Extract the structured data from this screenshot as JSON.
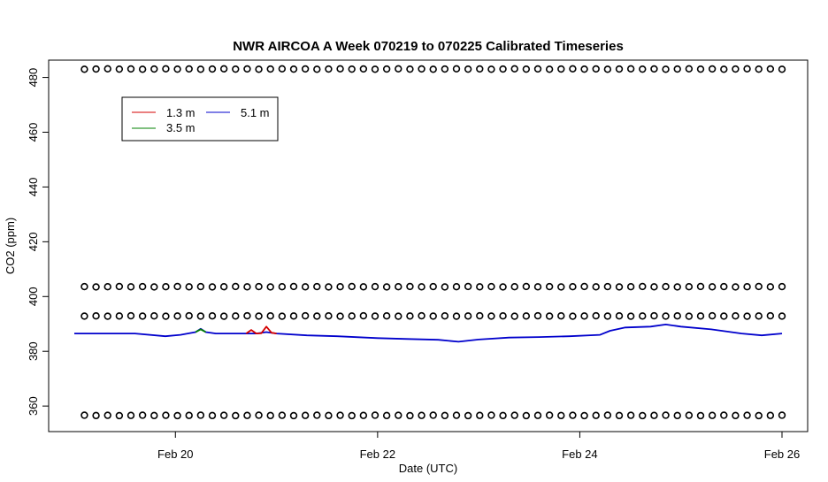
{
  "chart_data": {
    "type": "line",
    "title": "NWR AIRCOA A  Week 070219 to 070225  Calibrated Timeseries",
    "xlabel": "Date (UTC)",
    "ylabel": "CO2 (ppm)",
    "xlim": [
      19.0,
      26.0
    ],
    "ylim": [
      351.0,
      486.0
    ],
    "x_ticks": [
      {
        "value": 20,
        "label": "Feb 20"
      },
      {
        "value": 22,
        "label": "Feb 22"
      },
      {
        "value": 24,
        "label": "Feb 24"
      },
      {
        "value": 26,
        "label": "Feb 26"
      }
    ],
    "y_ticks": [
      360,
      380,
      400,
      420,
      440,
      460,
      480
    ],
    "legend": {
      "position": "top-left",
      "entries": [
        {
          "name": "1.3 m",
          "color": "#d40000"
        },
        {
          "name": "3.5 m",
          "color": "#008000"
        },
        {
          "name": "5.1 m",
          "color": "#0000cc"
        }
      ]
    },
    "series": [
      {
        "name": "5.1 m",
        "color": "#0000cc",
        "x": [
          19.0,
          19.3,
          19.6,
          19.9,
          20.05,
          20.2,
          20.25,
          20.3,
          20.4,
          20.6,
          20.8,
          20.9,
          21.0,
          21.3,
          21.6,
          22.0,
          22.3,
          22.6,
          22.8,
          23.0,
          23.3,
          23.6,
          23.9,
          24.2,
          24.3,
          24.45,
          24.7,
          24.85,
          25.0,
          25.3,
          25.6,
          25.8,
          26.0
        ],
        "y": [
          386.5,
          386.5,
          386.5,
          385.5,
          386.0,
          387.0,
          388.2,
          387.0,
          386.5,
          386.5,
          386.5,
          387.0,
          386.5,
          385.8,
          385.5,
          384.8,
          384.5,
          384.2,
          383.5,
          384.3,
          385.0,
          385.2,
          385.5,
          386.0,
          387.5,
          388.7,
          389.0,
          389.8,
          389.0,
          388.0,
          386.5,
          385.8,
          386.5
        ]
      },
      {
        "name": "1.3 m",
        "color": "#d40000",
        "x": [
          20.7,
          20.75,
          20.8,
          20.85,
          20.9,
          20.95,
          21.0
        ],
        "y": [
          386.5,
          387.8,
          386.5,
          386.6,
          389.0,
          386.8,
          386.5
        ]
      },
      {
        "name": "3.5 m",
        "color": "#008000",
        "x": [
          20.2,
          20.25,
          20.3
        ],
        "y": [
          387.0,
          388.0,
          387.0
        ]
      }
    ],
    "calibration_points": {
      "marker": "open-circle",
      "x_start": 19.1,
      "x_end": 26.0,
      "count": 61,
      "levels": [
        483.0,
        403.5,
        392.8,
        356.5
      ]
    }
  }
}
